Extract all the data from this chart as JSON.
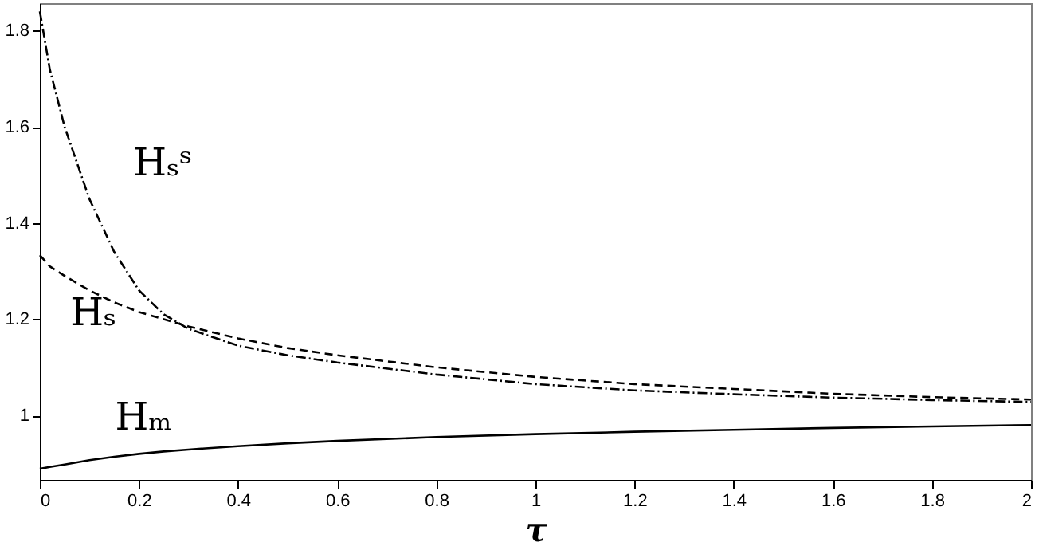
{
  "chart_data": {
    "type": "line",
    "xlabel": "τ",
    "x": [
      0,
      0.02,
      0.05,
      0.1,
      0.15,
      0.2,
      0.25,
      0.3,
      0.4,
      0.5,
      0.6,
      0.8,
      1,
      1.2,
      1.4,
      1.6,
      1.8,
      2
    ],
    "series": [
      {
        "name": "Hₛˢ",
        "color": "#000000",
        "line_style": "dotted",
        "values": [
          1.84,
          1.72,
          1.6,
          1.45,
          1.34,
          1.26,
          1.21,
          1.18,
          1.145,
          1.125,
          1.11,
          1.085,
          1.065,
          1.052,
          1.044,
          1.037,
          1.032,
          1.028
        ]
      },
      {
        "name": "Hₛ",
        "color": "#000000",
        "line_style": "dashed",
        "values": [
          1.333,
          1.31,
          1.29,
          1.26,
          1.235,
          1.215,
          1.2,
          1.185,
          1.16,
          1.14,
          1.125,
          1.1,
          1.08,
          1.065,
          1.055,
          1.045,
          1.038,
          1.033
        ]
      },
      {
        "name": "Hₘ",
        "color": "#000000",
        "line_style": "solid",
        "values": [
          0.889,
          0.893,
          0.898,
          0.907,
          0.914,
          0.92,
          0.925,
          0.929,
          0.936,
          0.942,
          0.947,
          0.955,
          0.961,
          0.966,
          0.97,
          0.974,
          0.977,
          0.98
        ]
      }
    ],
    "xlim": [
      0,
      2
    ],
    "ylim": [
      0.866,
      1.857
    ],
    "xticks": [
      0,
      0.2,
      0.4,
      0.6,
      0.8,
      1,
      1.2,
      1.4,
      1.6,
      1.8,
      2
    ],
    "yticks": [
      1,
      1.2,
      1.4,
      1.6,
      1.8
    ],
    "grid": false
  }
}
